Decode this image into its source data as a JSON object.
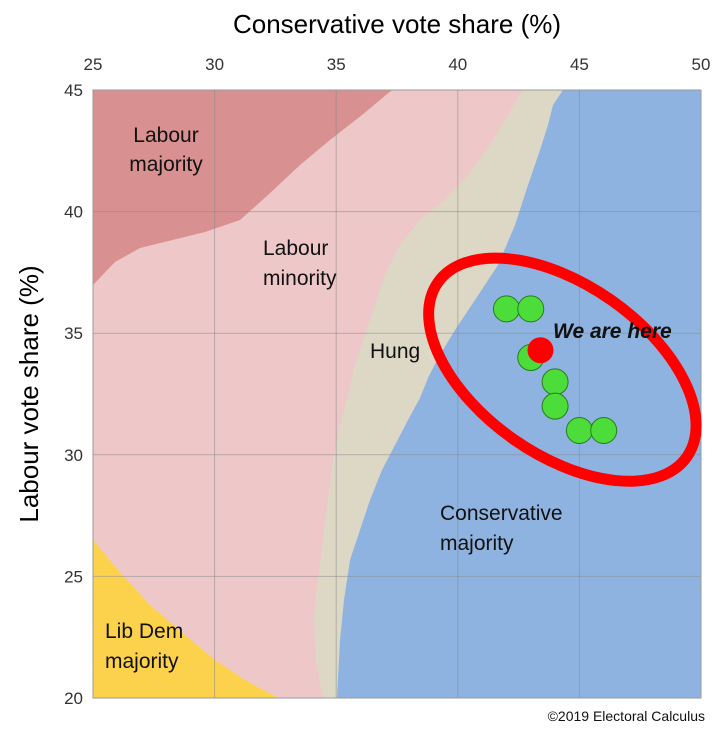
{
  "chart_data": {
    "type": "scatter",
    "title": "",
    "xlabel": "Conservative vote share (%)",
    "ylabel": "Labour vote share (%)",
    "xlim": [
      25,
      50
    ],
    "ylim": [
      20,
      45
    ],
    "x_axis_position": "top",
    "x_ticks": [
      25,
      30,
      35,
      40,
      45,
      50
    ],
    "y_ticks": [
      20,
      25,
      30,
      35,
      40,
      45
    ],
    "grid": true,
    "regions": [
      {
        "label": "Labour\nmajority",
        "color": "#d89090"
      },
      {
        "label": "Labour\nminority",
        "color": "#eec8c8"
      },
      {
        "label": "Hung",
        "color": "#ddd8c6"
      },
      {
        "label": "Conservative\nmajority",
        "color": "#8fb3e0"
      },
      {
        "label": "Lib Dem\nmajority",
        "color": "#fcd24c"
      }
    ],
    "series": [
      {
        "color": "#4cdd3a",
        "points": [
          {
            "x": 42.0,
            "y": 36.0
          },
          {
            "x": 43.0,
            "y": 36.0
          },
          {
            "x": 43.0,
            "y": 34.0
          },
          {
            "x": 44.0,
            "y": 33.0
          },
          {
            "x": 44.0,
            "y": 32.0
          },
          {
            "x": 45.0,
            "y": 31.0
          },
          {
            "x": 46.0,
            "y": 31.0
          }
        ]
      },
      {
        "color": "#ff0000",
        "points": [
          {
            "x": 43.4,
            "y": 34.3
          }
        ]
      }
    ],
    "annotations": [
      {
        "text": "We are here",
        "x": 45.0,
        "y": 35.0
      }
    ],
    "ellipse": {
      "cx": 44.3,
      "cy": 33.5,
      "color": "#ff0000"
    }
  },
  "credit": "©2019 Electoral Calculus"
}
